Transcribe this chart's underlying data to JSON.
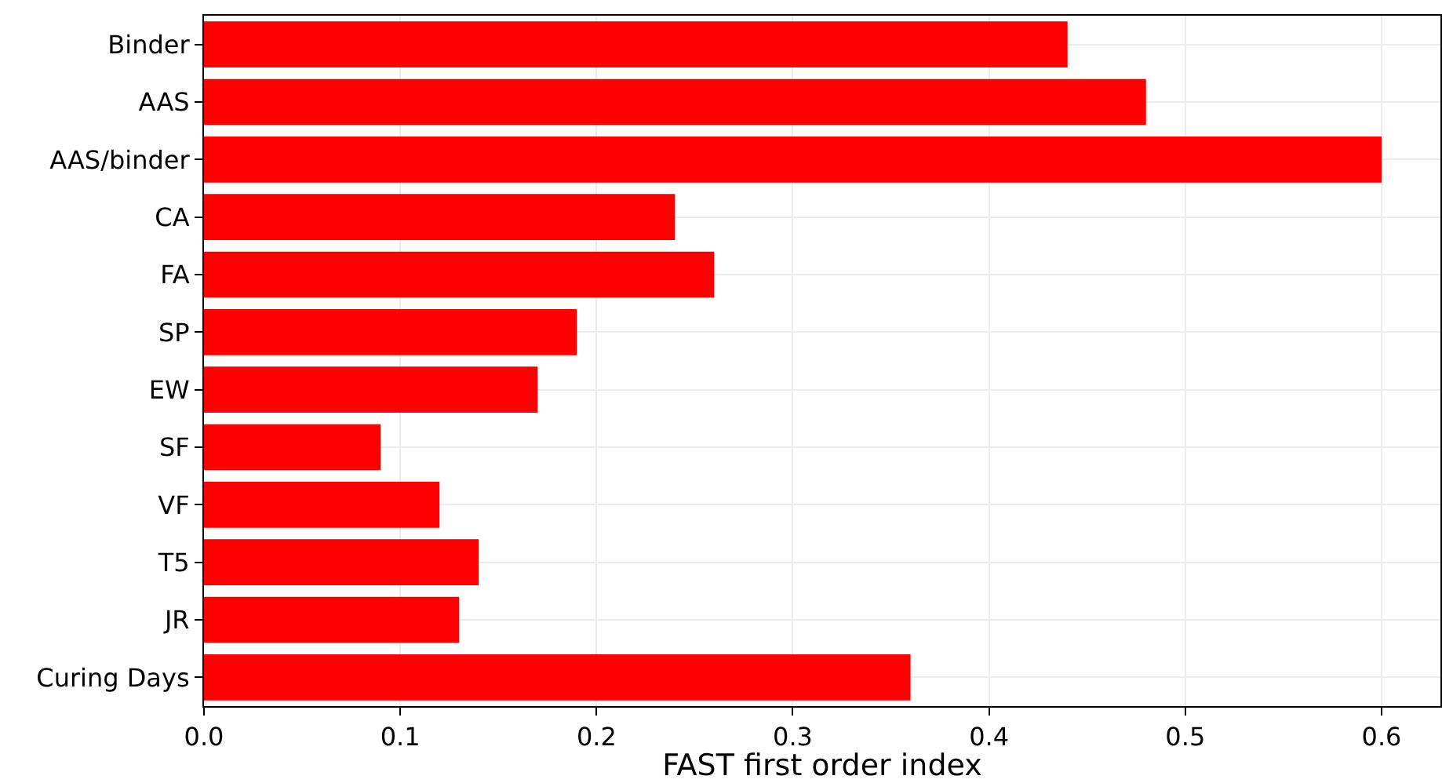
{
  "chart_data": {
    "type": "bar",
    "orientation": "horizontal",
    "categories": [
      "Binder",
      "AAS",
      "AAS/binder",
      "CA",
      "FA",
      "SP",
      "EW",
      "SF",
      "VF",
      "T5",
      "JR",
      "Curing Days"
    ],
    "values": [
      0.44,
      0.48,
      0.6,
      0.24,
      0.26,
      0.19,
      0.17,
      0.09,
      0.12,
      0.14,
      0.13,
      0.36
    ],
    "color": "#ff0000",
    "xlabel": "FAST first order index",
    "xlim": [
      0,
      0.63
    ],
    "xticks": [
      {
        "value": 0,
        "label": "0.0"
      },
      0.1,
      0.2,
      0.3,
      0.4,
      0.5,
      0.6
    ],
    "grid": true
  }
}
